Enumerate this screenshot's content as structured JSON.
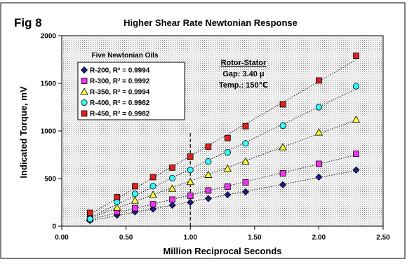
{
  "figure_label": "Fig 8",
  "chart_data": {
    "type": "scatter",
    "title": "Higher Shear Rate Newtonian Response",
    "xlabel": "Million Reciprocal Seconds",
    "ylabel": "Indicated Torque, mV",
    "xlim": [
      0,
      2.5
    ],
    "ylim": [
      0,
      2000
    ],
    "xticks": [
      0,
      0.5,
      1.0,
      1.5,
      2.0,
      2.5
    ],
    "xtick_labels": [
      "0.00",
      "0.50",
      "1.00",
      "1.50",
      "2.00",
      "2.50"
    ],
    "yticks": [
      0,
      500,
      1000,
      1500,
      2000
    ],
    "ytick_labels": [
      "0",
      "500",
      "1000",
      "1500",
      "2000"
    ],
    "grid": false,
    "background": "dotted-gray",
    "reference_line": {
      "x": 1.0,
      "style": "dashed"
    },
    "legend": {
      "title": "Five Newtonian Oils",
      "placement": "top-left"
    },
    "annotation": {
      "heading": "Rotor-Stator",
      "lines": [
        "Gap: 3.40 μ",
        "Temp.: 150℃"
      ]
    },
    "trendlines": "dotted linear fit per series",
    "x": [
      0.22,
      0.43,
      0.57,
      0.71,
      0.86,
      1.0,
      1.14,
      1.29,
      1.43,
      1.72,
      2.0,
      2.29
    ],
    "series": [
      {
        "name": "R-200, R² = 0.9994",
        "marker": "diamond",
        "color": "#1c1c8c",
        "values": [
          60,
          115,
          150,
          180,
          220,
          250,
          290,
          330,
          360,
          435,
          515,
          590
        ]
      },
      {
        "name": "R-300, R² = 0.9992",
        "marker": "square",
        "color": "#ee33ee",
        "values": [
          75,
          150,
          190,
          230,
          280,
          320,
          375,
          415,
          460,
          555,
          655,
          760
        ]
      },
      {
        "name": "R-350, R² = 0.9994",
        "marker": "triangle",
        "color": "#ffff33",
        "values": [
          95,
          195,
          270,
          330,
          395,
          465,
          540,
          605,
          680,
          830,
          985,
          1120
        ]
      },
      {
        "name": "R-400, R² = 0.9982",
        "marker": "circle",
        "color": "#33ffff",
        "values": [
          75,
          255,
          340,
          420,
          505,
          590,
          680,
          775,
          870,
          1055,
          1250,
          1470
        ]
      },
      {
        "name": "R-450, R² = 0.9982",
        "marker": "square",
        "color": "#e02020",
        "values": [
          140,
          305,
          420,
          515,
          615,
          730,
          835,
          925,
          1050,
          1280,
          1530,
          1790
        ]
      }
    ]
  }
}
